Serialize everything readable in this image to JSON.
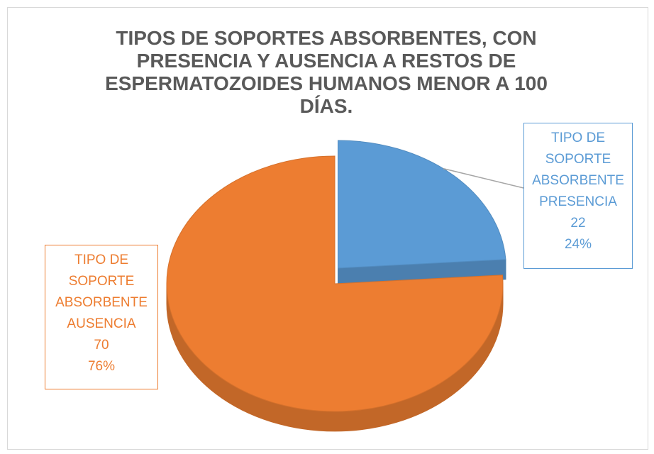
{
  "chart_data": {
    "type": "pie",
    "title": "TIPOS DE SOPORTES ABSORBENTES, CON PRESENCIA Y AUSENCIA A RESTOS DE ESPERMATOZOIDES HUMANOS MENOR A 100 DÍAS.",
    "categories": [
      "TIPO DE SOPORTE ABSORBENTE PRESENCIA",
      "TIPO DE SOPORTE ABSORBENTE AUSENCIA"
    ],
    "values": [
      22,
      70
    ],
    "percent_labels": [
      "24%",
      "76%"
    ],
    "colors": [
      "#5b9bd5",
      "#ed7d31"
    ]
  }
}
